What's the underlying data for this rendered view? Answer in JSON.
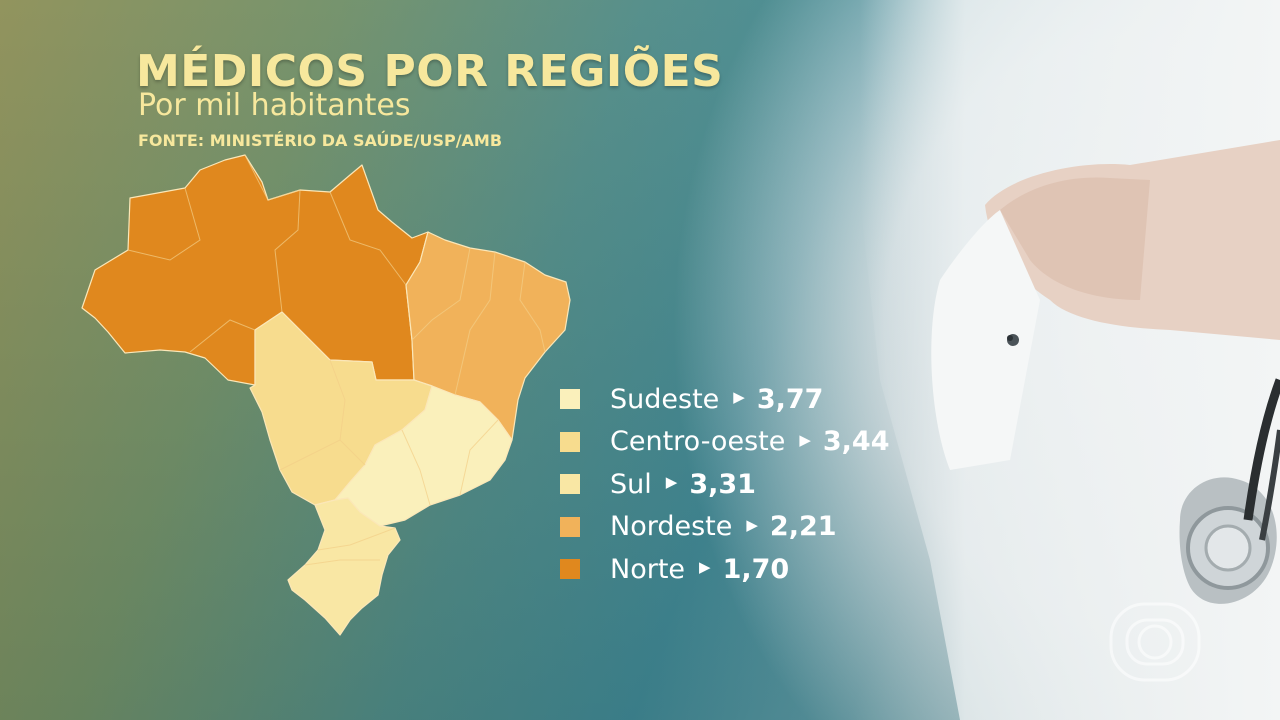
{
  "chart_data": {
    "type": "choropleth-map",
    "title": "MÉDICOS POR REGIÕES",
    "subtitle": "Por mil habitantes",
    "source": "FONTE: MINISTÉRIO DA SAÚDE/USP/AMB",
    "series": [
      {
        "name": "Sudeste",
        "value": "3,77",
        "numeric": 3.77,
        "color": "#faf0bb"
      },
      {
        "name": "Centro-oeste",
        "value": "3,44",
        "numeric": 3.44,
        "color": "#f7dc8e"
      },
      {
        "name": "Sul",
        "value": "3,31",
        "numeric": 3.31,
        "color": "#f9e7a4"
      },
      {
        "name": "Nordeste",
        "value": "2,21",
        "numeric": 2.21,
        "color": "#f1b25a"
      },
      {
        "name": "Norte",
        "value": "1,70",
        "numeric": 1.7,
        "color": "#e0881e"
      }
    ],
    "legend_position": "right of map"
  },
  "icons": {
    "globo_logo": "globo-logo-watermark",
    "legend_arrow": "triangle-right-icon"
  }
}
